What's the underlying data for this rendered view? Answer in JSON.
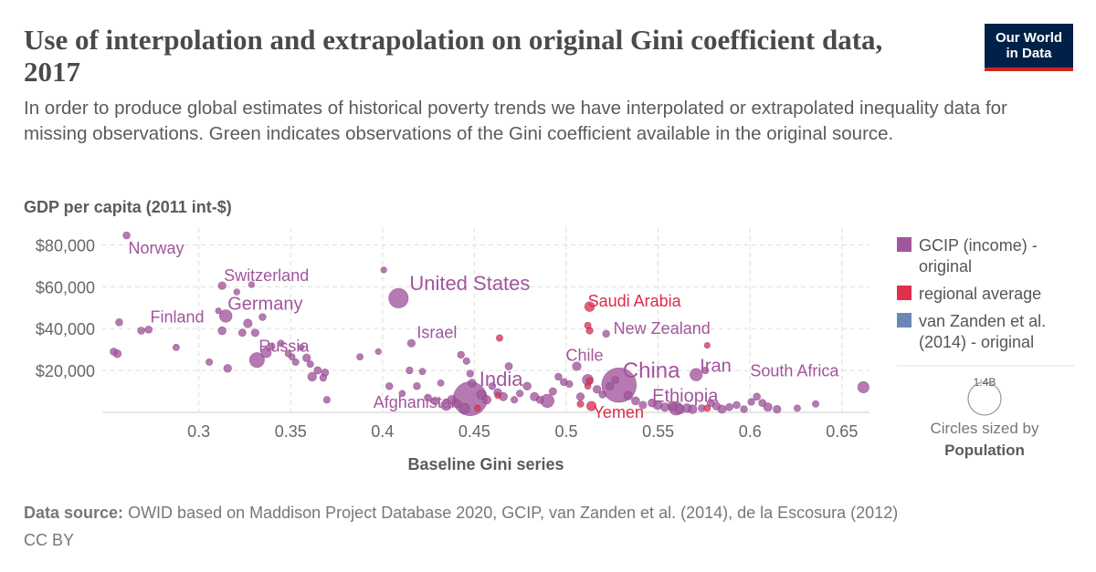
{
  "header": {
    "title": "Use of interpolation and extrapolation on original Gini coefficient data, 2017",
    "subtitle": "In order to produce global estimates of historical poverty trends we have interpolated or extrapolated inequality data for missing observations. Green indicates observations of the Gini coefficient available in the original source.",
    "logo_line1": "Our World",
    "logo_line2": "in Data"
  },
  "footer": {
    "source_label": "Data source:",
    "source_text": "OWID based on Maddison Project Database 2020, GCIP, van Zanden et al. (2014), de la Escosura (2012)",
    "license": "CC BY"
  },
  "colors": {
    "gcip": "#a2559c",
    "regional": "#e0304c",
    "vanzanden": "#6d87b5"
  },
  "chart_data": {
    "type": "scatter",
    "xlabel": "Baseline Gini series",
    "ylabel": "GDP per capita (2011 int-$)",
    "xlim": [
      0.2475,
      0.665
    ],
    "ylim": [
      0,
      88000
    ],
    "x_ticks": [
      0.3,
      0.35,
      0.4,
      0.45,
      0.5,
      0.55,
      0.6,
      0.65
    ],
    "x_tick_labels": [
      "0.3",
      "0.35",
      "0.4",
      "0.45",
      "0.5",
      "0.55",
      "0.6",
      "0.65"
    ],
    "y_ticks": [
      20000,
      40000,
      60000,
      80000
    ],
    "y_tick_labels": [
      "$20,000",
      "$40,000",
      "$60,000",
      "$80,000"
    ],
    "grid": true,
    "legend_position": "right",
    "legend": [
      {
        "label_line1": "GCIP (income) -",
        "label_line2": "original",
        "color": "#a2559c"
      },
      {
        "label_line1": "regional average",
        "label_line2": "",
        "color": "#e0304c"
      },
      {
        "label_line1": "van Zanden et al.",
        "label_line2": "(2014) - original",
        "color": "#6d87b5"
      }
    ],
    "size_legend": {
      "value_label": "1:4B",
      "caption_line1": "Circles sized by",
      "caption_line2": "Population"
    },
    "labeled_points": [
      {
        "label": "Norway",
        "x": 0.2607,
        "y": 84500,
        "pop": 0.0055,
        "group": "gcip"
      },
      {
        "label": "Switzerland",
        "x": 0.3127,
        "y": 60500,
        "pop": 0.0086,
        "group": "gcip"
      },
      {
        "label": "United States",
        "x": 0.4087,
        "y": 54500,
        "pop": 0.327,
        "group": "gcip"
      },
      {
        "label": "Germany",
        "x": 0.3147,
        "y": 46000,
        "pop": 0.083,
        "group": "gcip"
      },
      {
        "label": "Finland",
        "x": 0.2567,
        "y": 43000,
        "pop": 0.0055,
        "group": "gcip"
      },
      {
        "label": "Israel",
        "x": 0.4157,
        "y": 33000,
        "pop": 0.009,
        "group": "gcip"
      },
      {
        "label": "Russia",
        "x": 0.3317,
        "y": 25000,
        "pop": 0.145,
        "group": "gcip"
      },
      {
        "label": "Saudi Arabia",
        "x": 0.5127,
        "y": 50500,
        "pop": 0.033,
        "group": "regional"
      },
      {
        "label": "New Zealand",
        "x": 0.5217,
        "y": 37500,
        "pop": 0.0048,
        "group": "gcip"
      },
      {
        "label": "Chile",
        "x": 0.5057,
        "y": 22000,
        "pop": 0.018,
        "group": "gcip"
      },
      {
        "label": "China",
        "x": 0.5287,
        "y": 13000,
        "pop": 1.4,
        "group": "gcip"
      },
      {
        "label": "Iran",
        "x": 0.5707,
        "y": 18000,
        "pop": 0.081,
        "group": "gcip"
      },
      {
        "label": "India",
        "x": 0.4477,
        "y": 6500,
        "pop": 1.34,
        "group": "gcip"
      },
      {
        "label": "Afghanistan",
        "x": 0.4447,
        "y": 1800,
        "pop": 0.036,
        "group": "gcip"
      },
      {
        "label": "Yemen",
        "x": 0.5137,
        "y": 3000,
        "pop": 0.028,
        "group": "regional"
      },
      {
        "label": "Ethiopia",
        "x": 0.5597,
        "y": 1900,
        "pop": 0.106,
        "group": "gcip"
      },
      {
        "label": "South Africa",
        "x": 0.6617,
        "y": 12000,
        "pop": 0.057,
        "group": "gcip"
      }
    ],
    "other_points": [
      [
        0.2537,
        29000,
        0.0057,
        "gcip"
      ],
      [
        0.2557,
        28000,
        0.0103,
        "gcip"
      ],
      [
        0.2687,
        39000,
        0.0058,
        "gcip"
      ],
      [
        0.2727,
        39500,
        0.0053,
        "gcip"
      ],
      [
        0.2877,
        31000,
        0.002,
        "gcip"
      ],
      [
        0.3057,
        24000,
        0.0028,
        "gcip"
      ],
      [
        0.3107,
        48500,
        0.0004,
        "gcip"
      ],
      [
        0.3127,
        39000,
        0.0115,
        "gcip"
      ],
      [
        0.3157,
        21000,
        0.0106,
        "gcip"
      ],
      [
        0.3237,
        38000,
        0.0066,
        "gcip"
      ],
      [
        0.3267,
        42500,
        0.0173,
        "gcip"
      ],
      [
        0.3207,
        57500,
        0.0009,
        "gcip"
      ],
      [
        0.3287,
        61000,
        0.0009,
        "gcip"
      ],
      [
        0.3307,
        38000,
        0.0088,
        "gcip"
      ],
      [
        0.3347,
        45500,
        0.0048,
        "gcip"
      ],
      [
        0.3367,
        28500,
        0.038,
        "gcip"
      ],
      [
        0.3397,
        31500,
        0.004,
        "gcip"
      ],
      [
        0.3447,
        33000,
        0.0021,
        "gcip"
      ],
      [
        0.3487,
        28000,
        0.0013,
        "gcip"
      ],
      [
        0.3507,
        26500,
        0.0019,
        "gcip"
      ],
      [
        0.3527,
        24000,
        0.0027,
        "gcip"
      ],
      [
        0.3557,
        31000,
        0.0006,
        "gcip"
      ],
      [
        0.3587,
        26000,
        0.01,
        "gcip"
      ],
      [
        0.3607,
        23000,
        0.0029,
        "gcip"
      ],
      [
        0.3617,
        17000,
        0.0194,
        "gcip"
      ],
      [
        0.3647,
        20000,
        0.0074,
        "gcip"
      ],
      [
        0.3677,
        16500,
        0.0044,
        "gcip"
      ],
      [
        0.3697,
        6000,
        0.0033,
        "gcip"
      ],
      [
        0.3687,
        19000,
        0.0068,
        "gcip"
      ],
      [
        0.3877,
        26500,
        0.0021,
        "gcip"
      ],
      [
        0.3977,
        29000,
        0.0006,
        "gcip"
      ],
      [
        0.4007,
        68000,
        0.0006,
        "gcip"
      ],
      [
        0.4037,
        12500,
        0.0048,
        "gcip"
      ],
      [
        0.4107,
        9000,
        0.0016,
        "gcip"
      ],
      [
        0.4147,
        20000,
        0.0042,
        "gcip"
      ],
      [
        0.4187,
        12500,
        0.0049,
        "gcip"
      ],
      [
        0.4217,
        19500,
        0.002,
        "gcip"
      ],
      [
        0.4247,
        7000,
        0.006,
        "gcip"
      ],
      [
        0.4287,
        5500,
        0.0104,
        "gcip"
      ],
      [
        0.4317,
        14000,
        0.0019,
        "gcip"
      ],
      [
        0.4347,
        3500,
        0.045,
        "gcip"
      ],
      [
        0.4377,
        6000,
        0.0195,
        "gcip"
      ],
      [
        0.4407,
        4000,
        0.0113,
        "gcip"
      ],
      [
        0.4427,
        27500,
        0.0041,
        "gcip"
      ],
      [
        0.4457,
        24500,
        0.0031,
        "gcip"
      ],
      [
        0.4477,
        18500,
        0.0041,
        "gcip"
      ],
      [
        0.4487,
        14000,
        0.011,
        "gcip"
      ],
      [
        0.4537,
        8500,
        0.02,
        "gcip"
      ],
      [
        0.4567,
        6000,
        0.0176,
        "gcip"
      ],
      [
        0.4597,
        12500,
        0.0044,
        "gcip"
      ],
      [
        0.4627,
        9500,
        0.0099,
        "gcip"
      ],
      [
        0.4657,
        7500,
        0.0145,
        "gcip"
      ],
      [
        0.4687,
        22000,
        0.0066,
        "gcip"
      ],
      [
        0.4717,
        6000,
        0.0032,
        "gcip"
      ],
      [
        0.4747,
        9000,
        0.0035,
        "gcip"
      ],
      [
        0.4787,
        12500,
        0.0108,
        "gcip"
      ],
      [
        0.4827,
        7500,
        0.0162,
        "gcip"
      ],
      [
        0.4857,
        6000,
        0.0066,
        "gcip"
      ],
      [
        0.4897,
        5500,
        0.105,
        "gcip"
      ],
      [
        0.4927,
        10000,
        0.0072,
        "gcip"
      ],
      [
        0.4957,
        17000,
        0.0045,
        "gcip"
      ],
      [
        0.4987,
        14500,
        0.0064,
        "gcip"
      ],
      [
        0.5017,
        13500,
        0.0034,
        "gcip"
      ],
      [
        0.5077,
        7500,
        0.0095,
        "gcip"
      ],
      [
        0.5117,
        15500,
        0.049,
        "gcip"
      ],
      [
        0.5167,
        11000,
        0.0105,
        "gcip"
      ],
      [
        0.5197,
        8500,
        0.0045,
        "gcip"
      ],
      [
        0.5237,
        12500,
        0.0083,
        "gcip"
      ],
      [
        0.5267,
        15500,
        0.0046,
        "gcip"
      ],
      [
        0.5337,
        8000,
        0.0175,
        "gcip"
      ],
      [
        0.5377,
        5500,
        0.013,
        "gcip"
      ],
      [
        0.5417,
        3500,
        0.0076,
        "gcip"
      ],
      [
        0.5467,
        4500,
        0.0125,
        "gcip"
      ],
      [
        0.5497,
        3500,
        0.022,
        "gcip"
      ],
      [
        0.5537,
        2500,
        0.017,
        "gcip"
      ],
      [
        0.5577,
        3000,
        0.025,
        "gcip"
      ],
      [
        0.5617,
        1500,
        0.03,
        "gcip"
      ],
      [
        0.5657,
        2000,
        0.021,
        "gcip"
      ],
      [
        0.5687,
        1500,
        0.0192,
        "gcip"
      ],
      [
        0.5737,
        2000,
        0.0046,
        "gcip"
      ],
      [
        0.5757,
        20000,
        0.0032,
        "gcip"
      ],
      [
        0.5787,
        4500,
        0.0066,
        "gcip"
      ],
      [
        0.5817,
        3000,
        0.0092,
        "gcip"
      ],
      [
        0.5847,
        1500,
        0.0136,
        "gcip"
      ],
      [
        0.5887,
        2500,
        0.0071,
        "gcip"
      ],
      [
        0.5927,
        3500,
        0.0052,
        "gcip"
      ],
      [
        0.5967,
        1500,
        0.0046,
        "gcip"
      ],
      [
        0.6007,
        5000,
        0.0039,
        "gcip"
      ],
      [
        0.6037,
        7500,
        0.0057,
        "gcip"
      ],
      [
        0.6067,
        4500,
        0.0064,
        "gcip"
      ],
      [
        0.6097,
        2500,
        0.0166,
        "gcip"
      ],
      [
        0.6147,
        1500,
        0.0095,
        "gcip"
      ],
      [
        0.6257,
        2000,
        0.0023,
        "gcip"
      ],
      [
        0.6357,
        4000,
        0.0025,
        "gcip"
      ],
      [
        0.4637,
        35500,
        0.0028,
        "regional"
      ],
      [
        0.5117,
        41500,
        0.0027,
        "regional"
      ],
      [
        0.5127,
        39000,
        0.0042,
        "regional"
      ],
      [
        0.5127,
        15000,
        0.0041,
        "regional"
      ],
      [
        0.5117,
        12500,
        0.0017,
        "regional"
      ],
      [
        0.4627,
        8000,
        0.0009,
        "regional"
      ],
      [
        0.4517,
        2000,
        0.0014,
        "regional"
      ],
      [
        0.5077,
        4000,
        0.0029,
        "regional"
      ],
      [
        0.5767,
        32000,
        0.0004,
        "regional"
      ],
      [
        0.5767,
        2000,
        0.0028,
        "regional"
      ]
    ]
  }
}
